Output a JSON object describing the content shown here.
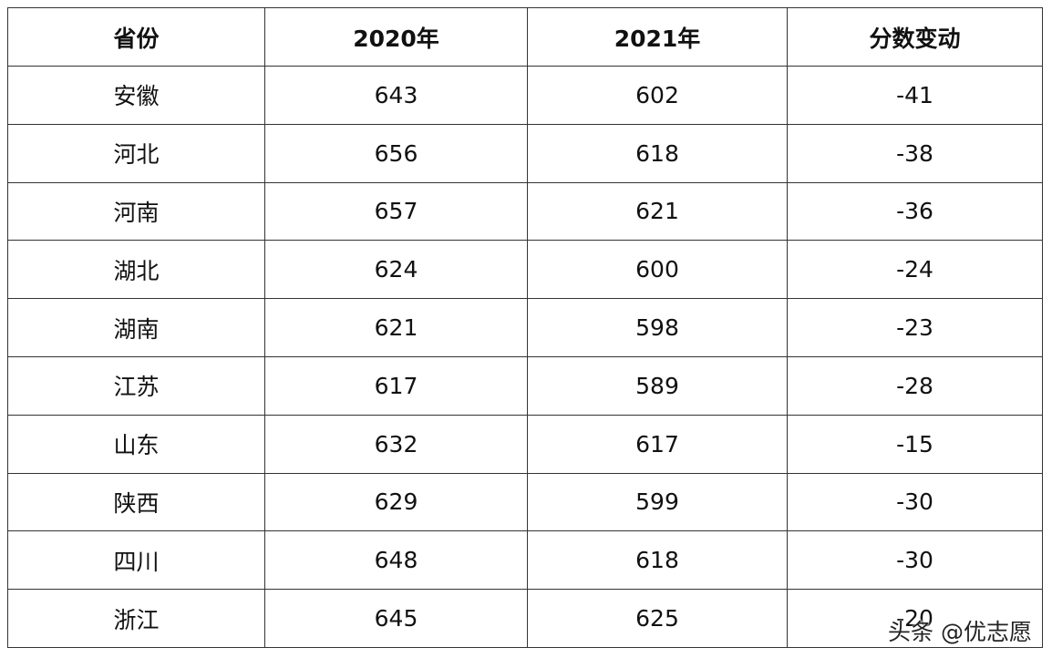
{
  "table": {
    "header": [
      "省份",
      "2020年",
      "2021年",
      "分数变动"
    ],
    "rows": [
      [
        "安徽",
        "643",
        "602",
        "-41"
      ],
      [
        "河北",
        "656",
        "618",
        "-38"
      ],
      [
        "河南",
        "657",
        "621",
        "-36"
      ],
      [
        "湖北",
        "624",
        "600",
        "-24"
      ],
      [
        "湖南",
        "621",
        "598",
        "-23"
      ],
      [
        "江苏",
        "617",
        "589",
        "-28"
      ],
      [
        "山东",
        "632",
        "617",
        "-15"
      ],
      [
        "陕西",
        "629",
        "599",
        "-30"
      ],
      [
        "四川",
        "648",
        "618",
        "-30"
      ],
      [
        "浙江",
        "645",
        "625",
        "-20"
      ]
    ]
  },
  "watermark": "头条 @优志愿"
}
